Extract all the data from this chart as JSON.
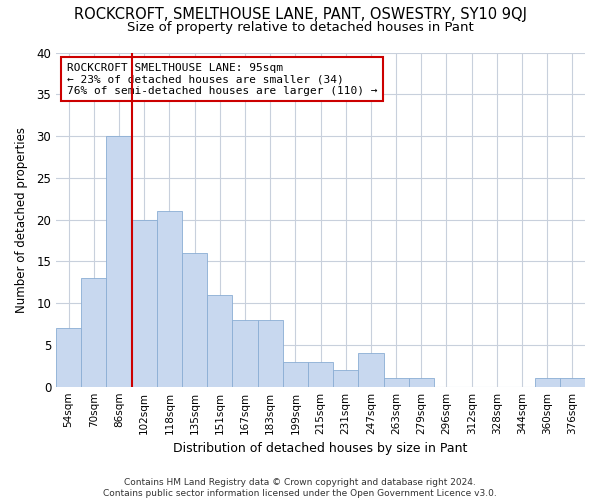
{
  "title": "ROCKCROFT, SMELTHOUSE LANE, PANT, OSWESTRY, SY10 9QJ",
  "subtitle": "Size of property relative to detached houses in Pant",
  "xlabel": "Distribution of detached houses by size in Pant",
  "ylabel": "Number of detached properties",
  "categories": [
    "54sqm",
    "70sqm",
    "86sqm",
    "102sqm",
    "118sqm",
    "135sqm",
    "151sqm",
    "167sqm",
    "183sqm",
    "199sqm",
    "215sqm",
    "231sqm",
    "247sqm",
    "263sqm",
    "279sqm",
    "296sqm",
    "312sqm",
    "328sqm",
    "344sqm",
    "360sqm",
    "376sqm"
  ],
  "values": [
    7,
    13,
    30,
    20,
    21,
    16,
    11,
    8,
    8,
    3,
    3,
    2,
    4,
    1,
    1,
    0,
    0,
    0,
    0,
    1,
    1
  ],
  "bar_color": "#c8d8ef",
  "bar_edge_color": "#8aadd4",
  "vline_color": "#cc0000",
  "vline_x": 3,
  "ylim": [
    0,
    40
  ],
  "yticks": [
    0,
    5,
    10,
    15,
    20,
    25,
    30,
    35,
    40
  ],
  "annotation_text": "ROCKCROFT SMELTHOUSE LANE: 95sqm\n← 23% of detached houses are smaller (34)\n76% of semi-detached houses are larger (110) →",
  "annotation_box_facecolor": "#ffffff",
  "annotation_box_edgecolor": "#cc0000",
  "fig_facecolor": "#ffffff",
  "plot_facecolor": "#ffffff",
  "grid_color": "#c8d0dc",
  "footer": "Contains HM Land Registry data © Crown copyright and database right 2024.\nContains public sector information licensed under the Open Government Licence v3.0.",
  "title_fontsize": 10.5,
  "subtitle_fontsize": 9.5,
  "footer_fontsize": 6.5
}
